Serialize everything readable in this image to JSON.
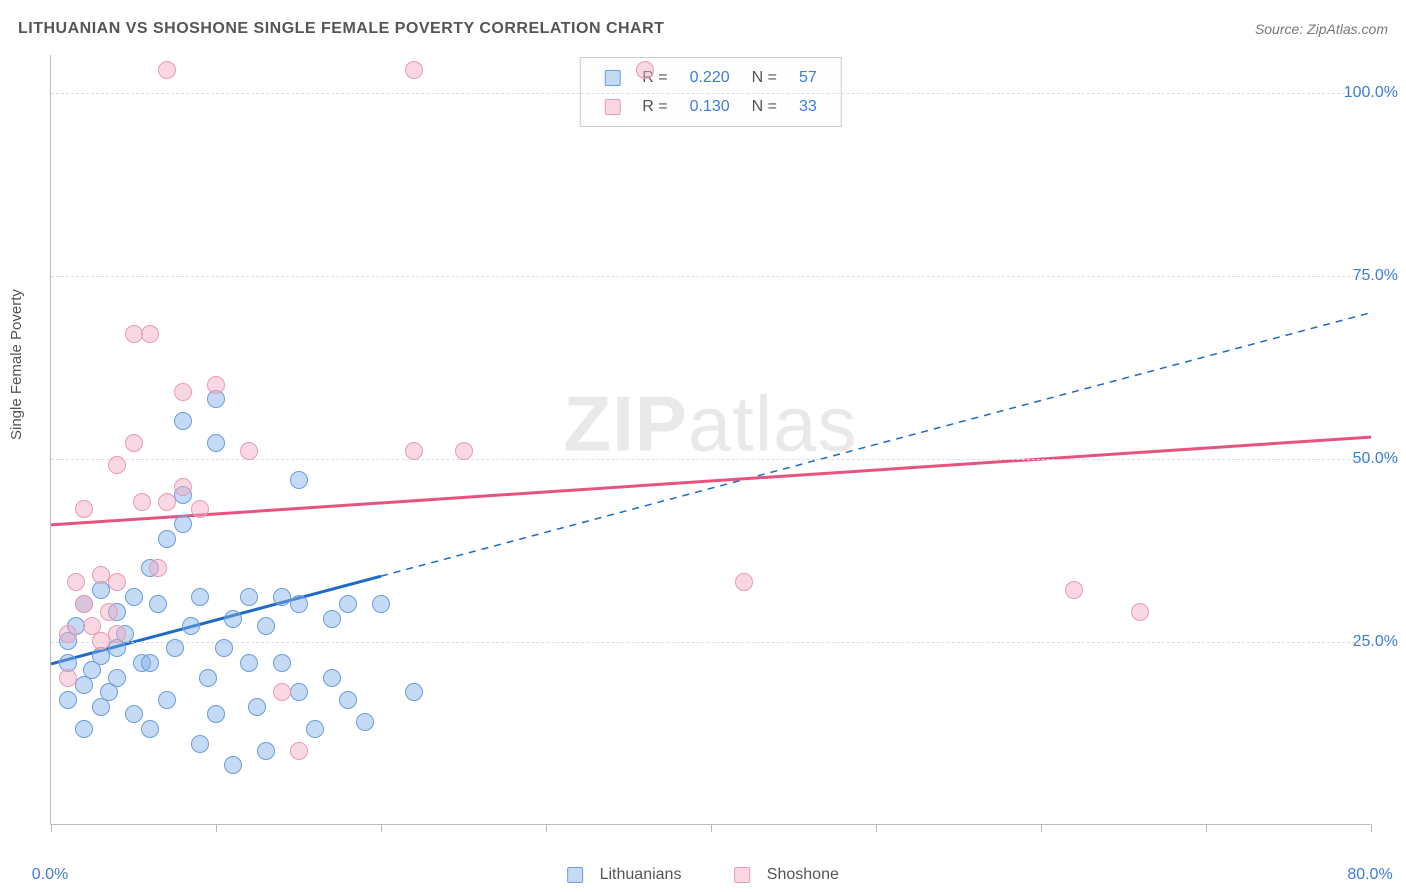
{
  "title": "LITHUANIAN VS SHOSHONE SINGLE FEMALE POVERTY CORRELATION CHART",
  "source": "Source: ZipAtlas.com",
  "watermark_a": "ZIP",
  "watermark_b": "atlas",
  "ylabel": "Single Female Poverty",
  "chart": {
    "type": "scatter",
    "background_color": "#ffffff",
    "grid_color": "#dddddd",
    "axis_color": "#bbbbbb",
    "label_color": "#3b7dd8",
    "text_color": "#555555",
    "xlim": [
      0,
      80
    ],
    "ylim": [
      0,
      105.2
    ],
    "xticks": [
      0,
      10,
      20,
      30,
      40,
      50,
      60,
      70,
      80
    ],
    "xtick_labels": {
      "0": "0.0%",
      "80": "80.0%"
    },
    "yticks": [
      25,
      50,
      75,
      100
    ],
    "ytick_labels": {
      "25": "25.0%",
      "50": "50.0%",
      "75": "75.0%",
      "100": "100.0%"
    },
    "marker_radius": 9,
    "series": [
      {
        "name": "Lithuanians",
        "fill": "rgba(126,174,230,0.45)",
        "stroke": "#6a9ed8",
        "trend_color": "#1e6ac4",
        "trend_width": 3,
        "trend_solid_until_x": 20,
        "R": "0.220",
        "N": "57",
        "trend": {
          "x1": 0,
          "y1": 22,
          "x2": 80,
          "y2": 70
        },
        "points": [
          [
            1,
            25
          ],
          [
            1,
            22
          ],
          [
            1.5,
            27
          ],
          [
            2,
            30
          ],
          [
            2,
            19
          ],
          [
            2.5,
            21
          ],
          [
            3,
            23
          ],
          [
            3,
            32
          ],
          [
            3.5,
            18
          ],
          [
            4,
            20
          ],
          [
            4,
            29
          ],
          [
            4.5,
            26
          ],
          [
            5,
            31
          ],
          [
            5,
            15
          ],
          [
            5.5,
            22
          ],
          [
            6,
            35
          ],
          [
            6,
            13
          ],
          [
            6.5,
            30
          ],
          [
            7,
            39
          ],
          [
            7,
            17
          ],
          [
            7.5,
            24
          ],
          [
            8,
            55
          ],
          [
            8,
            41
          ],
          [
            8.5,
            27
          ],
          [
            9,
            31
          ],
          [
            9,
            11
          ],
          [
            9.5,
            20
          ],
          [
            10,
            52
          ],
          [
            10,
            15
          ],
          [
            10.5,
            24
          ],
          [
            11,
            28
          ],
          [
            11,
            8
          ],
          [
            12,
            31
          ],
          [
            12,
            22
          ],
          [
            12.5,
            16
          ],
          [
            13,
            27
          ],
          [
            13,
            10
          ],
          [
            14,
            31
          ],
          [
            14,
            22
          ],
          [
            15,
            47
          ],
          [
            15,
            30
          ],
          [
            15,
            18
          ],
          [
            16,
            13
          ],
          [
            17,
            20
          ],
          [
            17,
            28
          ],
          [
            18,
            17
          ],
          [
            18,
            30
          ],
          [
            19,
            14
          ],
          [
            20,
            30
          ],
          [
            22,
            18
          ],
          [
            10,
            58
          ],
          [
            8,
            45
          ],
          [
            6,
            22
          ],
          [
            4,
            24
          ],
          [
            3,
            16
          ],
          [
            2,
            13
          ],
          [
            1,
            17
          ]
        ]
      },
      {
        "name": "Shoshone",
        "fill": "rgba(242,168,192,0.45)",
        "stroke": "#e99ab5",
        "trend_color": "#e6537f",
        "trend_width": 3,
        "R": "0.130",
        "N": "33",
        "trend": {
          "x1": 0,
          "y1": 41,
          "x2": 80,
          "y2": 53
        },
        "points": [
          [
            1,
            26
          ],
          [
            1.5,
            33
          ],
          [
            2,
            30
          ],
          [
            2.5,
            27
          ],
          [
            3,
            34
          ],
          [
            3.5,
            29
          ],
          [
            4,
            49
          ],
          [
            4,
            33
          ],
          [
            5,
            52
          ],
          [
            5,
            67
          ],
          [
            5.5,
            44
          ],
          [
            6,
            67
          ],
          [
            6.5,
            35
          ],
          [
            7,
            44
          ],
          [
            8,
            46
          ],
          [
            8,
            59
          ],
          [
            9,
            43
          ],
          [
            10,
            60
          ],
          [
            12,
            51
          ],
          [
            14,
            18
          ],
          [
            15,
            10
          ],
          [
            22,
            51
          ],
          [
            25,
            51
          ],
          [
            7,
            103
          ],
          [
            22,
            103
          ],
          [
            36,
            103
          ],
          [
            42,
            33
          ],
          [
            62,
            32
          ],
          [
            66,
            29
          ],
          [
            2,
            43
          ],
          [
            3,
            25
          ],
          [
            4,
            26
          ],
          [
            1,
            20
          ]
        ]
      }
    ]
  },
  "legend_top": {
    "r_label": "R =",
    "n_label": "N ="
  },
  "x_legend": {
    "s1": "Lithuanians",
    "s2": "Shoshone"
  }
}
